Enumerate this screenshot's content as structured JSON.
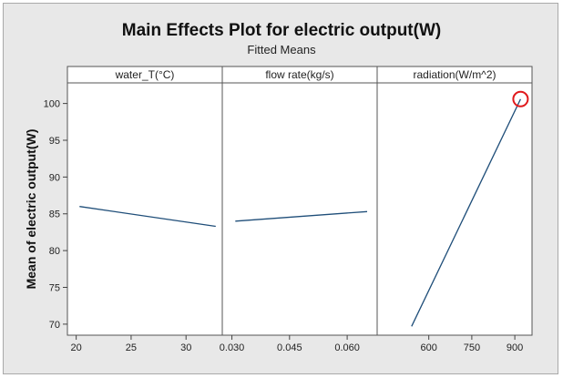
{
  "chart_data": {
    "type": "line",
    "title": "Main Effects Plot for electric output(W)",
    "subtitle": "Fitted Means",
    "ylabel": "Mean of electric output(W)",
    "ylim": [
      68.5,
      102.8
    ],
    "yticks": [
      70,
      75,
      80,
      85,
      90,
      95,
      100
    ],
    "line_color": "#1f4e79",
    "highlight_color": "#e0191c",
    "panels": [
      {
        "name": "water_T(°C)",
        "xlim": [
          19.2,
          33.3
        ],
        "xticks": [
          20,
          25,
          30
        ],
        "x": [
          20.3,
          32.7
        ],
        "y": [
          86.0,
          83.3
        ]
      },
      {
        "name": "flow rate(kg/s)",
        "xlim": [
          0.0275,
          0.0678
        ],
        "xticks": [
          0.03,
          0.045,
          0.06
        ],
        "xtick_labels": [
          "0.030",
          "0.045",
          "0.060"
        ],
        "x": [
          0.0309,
          0.0652
        ],
        "y": [
          84.0,
          85.3
        ]
      },
      {
        "name": "radiation(W/m^2)",
        "xlim": [
          420,
          960
        ],
        "xticks": [
          600,
          750,
          900
        ],
        "x": [
          540,
          920
        ],
        "y": [
          69.7,
          100.6
        ],
        "highlight_point": [
          920,
          100.6
        ]
      }
    ]
  }
}
